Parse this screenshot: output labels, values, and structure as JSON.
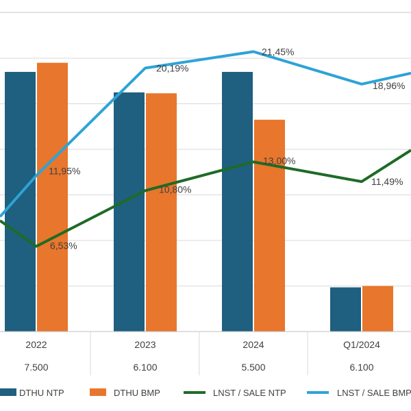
{
  "chart_data": {
    "type": "bar",
    "categories": [
      "2022",
      "2023",
      "2024",
      "Q1/2024"
    ],
    "row2": [
      "7.500",
      "6.100",
      "5.500",
      "6.100"
    ],
    "series": [
      {
        "name": "DTHU NTP",
        "type": "bar",
        "color": "#1F5F7F",
        "values": [
          5.7,
          5.25,
          5.7,
          0.97
        ]
      },
      {
        "name": "DTHU BMP",
        "type": "bar",
        "color": "#E8762C",
        "values": [
          5.9,
          5.23,
          4.65,
          1.0
        ]
      },
      {
        "name": "LNST / SALE NTP",
        "type": "line",
        "color": "#1E6B27",
        "values": [
          6.53,
          10.8,
          13.0,
          11.49
        ],
        "labels": [
          "6,53%",
          "10,80%",
          "13,00%",
          "11,49%"
        ]
      },
      {
        "name": "LNST / SALE BMP",
        "type": "line",
        "color": "#2EA3D6",
        "values": [
          11.95,
          20.19,
          21.45,
          18.96
        ],
        "labels": [
          "11,95%",
          "20,19%",
          "21,45%",
          "18,96%"
        ]
      }
    ],
    "grid": true,
    "legend_position": "bottom"
  }
}
